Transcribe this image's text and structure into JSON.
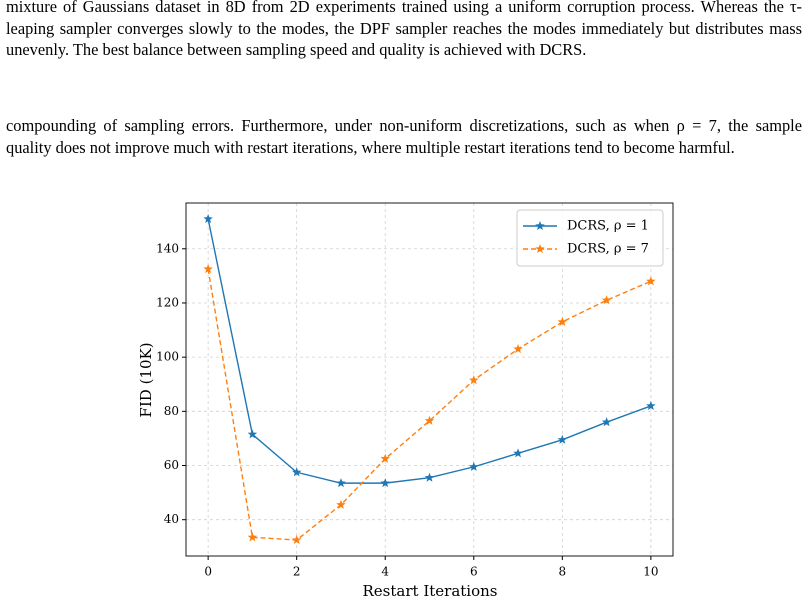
{
  "paragraphs": [
    "mixture of Gaussians dataset in 8D from 2D experiments trained using a uniform corruption process. Whereas the τ-leaping sampler converges slowly to the modes, the DPF sampler reaches the modes immediately but distributes mass unevenly. The best balance between sampling speed and quality is achieved with DCRS.",
    "compounding of sampling errors. Furthermore, under non-uniform discretizations, such as when ρ = 7, the sample quality does not improve much with restart iterations, where multiple restart iterations tend to become harmful."
  ],
  "chart_data": {
    "type": "line",
    "x_label": "Restart Iterations",
    "y_label": "FID (10K)",
    "x": [
      0,
      1,
      2,
      3,
      4,
      5,
      6,
      7,
      8,
      9,
      10
    ],
    "series": [
      {
        "name": "DCRS, ρ = 1",
        "color": "#1f77b4",
        "linestyle": "solid",
        "values": [
          151,
          71.5,
          57.5,
          53.5,
          53.5,
          55.5,
          59.5,
          64.5,
          69.5,
          76,
          82
        ]
      },
      {
        "name": "DCRS, ρ = 7",
        "color": "#ff7f0e",
        "linestyle": "dashed",
        "values": [
          132.5,
          33.5,
          32.5,
          45.5,
          62.5,
          76.5,
          91.5,
          103,
          113,
          121,
          128
        ]
      }
    ],
    "xlim": [
      -0.5,
      10.5
    ],
    "ylim": [
      26.6,
      156.9
    ],
    "xticks": [
      0,
      2,
      4,
      6,
      8,
      10
    ],
    "yticks": [
      40,
      60,
      80,
      100,
      120,
      140
    ],
    "grid": true,
    "legend": "upper right"
  }
}
